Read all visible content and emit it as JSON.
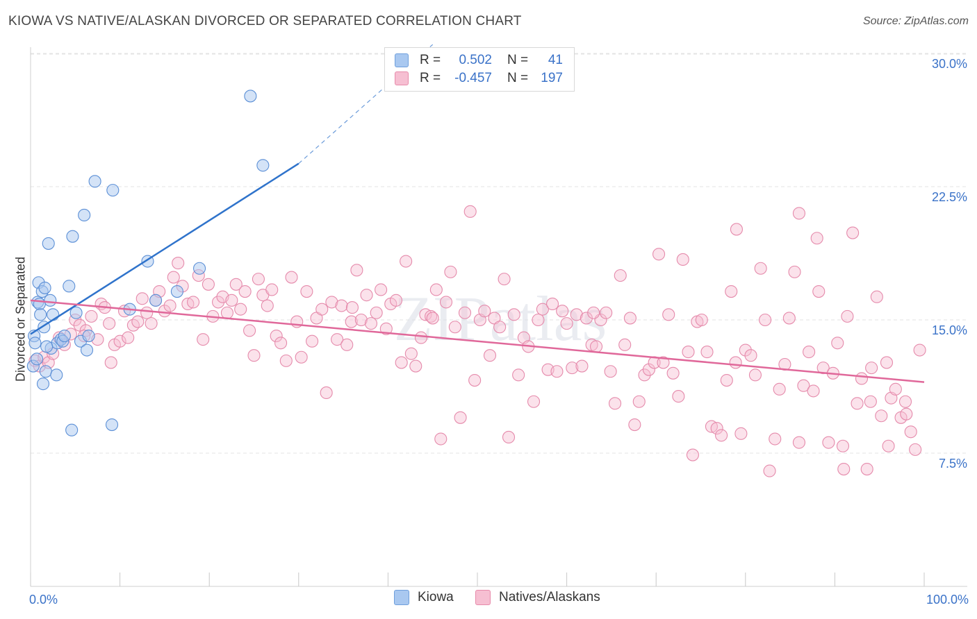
{
  "header": {
    "title": "KIOWA VS NATIVE/ALASKAN DIVORCED OR SEPARATED CORRELATION CHART",
    "source": "Source: ZipAtlas.com"
  },
  "watermark": "ZIPatlas",
  "legend": {
    "rows": [
      {
        "r_label": "R =",
        "r_value": "0.502",
        "n_label": "N =",
        "n_value": "41",
        "color": "#a9c8f0",
        "border": "#6f9fdc"
      },
      {
        "r_label": "R =",
        "r_value": "-0.457",
        "n_label": "N =",
        "n_value": "197",
        "color": "#f6bfd2",
        "border": "#e78aaa"
      }
    ]
  },
  "colors": {
    "kiowa_fill": "#a9c8f0",
    "kiowa_stroke": "#5b8fd6",
    "kiowa_line": "#2f73cb",
    "native_fill": "#f6bfd2",
    "native_stroke": "#e58aab",
    "native_line": "#e0689a",
    "tick_label": "#3a72c8",
    "grid": "#e3e3e3"
  },
  "chart_data": {
    "type": "scatter",
    "title": "KIOWA VS NATIVE/ALASKAN DIVORCED OR SEPARATED CORRELATION CHART",
    "xlabel": "",
    "ylabel": "Divorced or Separated",
    "xlim": [
      0,
      100
    ],
    "ylim": [
      0,
      31.5
    ],
    "x_tick_labels": [
      "0.0%",
      "100.0%"
    ],
    "y_ticks": [
      7.5,
      15.0,
      22.5,
      30.0
    ],
    "y_tick_labels": [
      "7.5%",
      "15.0%",
      "22.5%",
      "30.0%"
    ],
    "grid": true,
    "legend_placement": "bottom-center",
    "series": [
      {
        "name": "Kiowa",
        "r": 0.502,
        "n": 41,
        "trend": {
          "x": [
            0,
            30
          ],
          "y": [
            14.2,
            23.8
          ],
          "dashed_extension_to": [
            45,
            30.5
          ]
        },
        "points": [
          [
            0.3,
            12.4
          ],
          [
            0.4,
            14.1
          ],
          [
            0.5,
            13.7
          ],
          [
            0.8,
            16.0
          ],
          [
            0.9,
            17.1
          ],
          [
            1.0,
            15.9
          ],
          [
            1.1,
            15.3
          ],
          [
            1.3,
            16.6
          ],
          [
            1.4,
            11.4
          ],
          [
            1.5,
            14.6
          ],
          [
            1.6,
            16.8
          ],
          [
            1.7,
            12.1
          ],
          [
            2.0,
            19.3
          ],
          [
            2.2,
            16.1
          ],
          [
            2.3,
            13.4
          ],
          [
            2.5,
            15.3
          ],
          [
            2.9,
            11.9
          ],
          [
            3.0,
            13.7
          ],
          [
            3.4,
            13.9
          ],
          [
            3.6,
            13.8
          ],
          [
            3.8,
            14.1
          ],
          [
            4.3,
            16.9
          ],
          [
            4.6,
            8.8
          ],
          [
            4.7,
            19.7
          ],
          [
            5.1,
            15.4
          ],
          [
            5.6,
            13.8
          ],
          [
            6.0,
            20.9
          ],
          [
            6.3,
            13.3
          ],
          [
            6.5,
            14.1
          ],
          [
            7.2,
            22.8
          ],
          [
            9.1,
            9.1
          ],
          [
            9.2,
            22.3
          ],
          [
            11.1,
            15.6
          ],
          [
            13.1,
            18.3
          ],
          [
            14.0,
            16.1
          ],
          [
            16.4,
            16.6
          ],
          [
            18.9,
            17.9
          ],
          [
            24.6,
            27.6
          ],
          [
            26.0,
            23.7
          ],
          [
            1.8,
            13.5
          ],
          [
            0.7,
            12.8
          ]
        ]
      },
      {
        "name": "Natives/Alaskans",
        "r": -0.457,
        "n": 197,
        "trend": {
          "x": [
            0,
            100
          ],
          "y": [
            16.1,
            11.5
          ]
        },
        "points": [
          [
            0.5,
            12.7
          ],
          [
            1.0,
            12.4
          ],
          [
            1.5,
            12.9
          ],
          [
            2.0,
            12.6
          ],
          [
            2.5,
            13.1
          ],
          [
            3.2,
            14.0
          ],
          [
            3.8,
            13.6
          ],
          [
            4.5,
            14.2
          ],
          [
            5.0,
            15.0
          ],
          [
            5.5,
            14.7
          ],
          [
            6.2,
            14.4
          ],
          [
            6.8,
            15.2
          ],
          [
            7.5,
            13.9
          ],
          [
            7.9,
            15.9
          ],
          [
            8.3,
            15.7
          ],
          [
            8.8,
            14.8
          ],
          [
            9.4,
            13.6
          ],
          [
            10.0,
            13.8
          ],
          [
            10.5,
            15.5
          ],
          [
            10.9,
            14.0
          ],
          [
            11.5,
            14.7
          ],
          [
            12.0,
            14.9
          ],
          [
            12.5,
            16.2
          ],
          [
            13.0,
            15.4
          ],
          [
            13.5,
            14.8
          ],
          [
            14.0,
            16.1
          ],
          [
            14.4,
            16.6
          ],
          [
            15.0,
            15.5
          ],
          [
            15.6,
            15.8
          ],
          [
            16.0,
            17.4
          ],
          [
            16.5,
            18.2
          ],
          [
            17.0,
            16.9
          ],
          [
            17.6,
            15.9
          ],
          [
            18.2,
            16.0
          ],
          [
            18.8,
            17.5
          ],
          [
            19.3,
            13.9
          ],
          [
            19.9,
            17.0
          ],
          [
            20.4,
            15.2
          ],
          [
            21.0,
            16.0
          ],
          [
            21.5,
            16.3
          ],
          [
            22.0,
            15.4
          ],
          [
            22.5,
            16.1
          ],
          [
            23.0,
            17.0
          ],
          [
            23.5,
            15.6
          ],
          [
            24.0,
            16.6
          ],
          [
            24.5,
            14.4
          ],
          [
            25.0,
            13.0
          ],
          [
            25.5,
            17.3
          ],
          [
            26.0,
            16.4
          ],
          [
            26.5,
            15.8
          ],
          [
            27.0,
            16.7
          ],
          [
            27.5,
            14.1
          ],
          [
            28.0,
            13.7
          ],
          [
            28.6,
            12.7
          ],
          [
            29.2,
            17.4
          ],
          [
            29.8,
            14.9
          ],
          [
            30.3,
            12.9
          ],
          [
            30.9,
            16.6
          ],
          [
            31.5,
            13.8
          ],
          [
            32.0,
            15.1
          ],
          [
            32.6,
            15.6
          ],
          [
            33.1,
            10.9
          ],
          [
            33.7,
            16.0
          ],
          [
            34.3,
            13.9
          ],
          [
            34.8,
            15.8
          ],
          [
            35.4,
            13.6
          ],
          [
            35.9,
            14.9
          ],
          [
            36.5,
            17.8
          ],
          [
            37.0,
            15.0
          ],
          [
            37.6,
            16.4
          ],
          [
            38.1,
            14.8
          ],
          [
            38.7,
            15.4
          ],
          [
            39.2,
            16.7
          ],
          [
            39.8,
            14.5
          ],
          [
            40.3,
            15.9
          ],
          [
            40.9,
            16.1
          ],
          [
            41.5,
            12.6
          ],
          [
            42.0,
            18.3
          ],
          [
            42.6,
            13.1
          ],
          [
            43.1,
            12.4
          ],
          [
            43.7,
            14.0
          ],
          [
            44.2,
            15.3
          ],
          [
            44.8,
            15.2
          ],
          [
            45.4,
            16.7
          ],
          [
            45.9,
            8.3
          ],
          [
            46.5,
            16.0
          ],
          [
            47.0,
            17.7
          ],
          [
            47.5,
            14.6
          ],
          [
            48.1,
            9.5
          ],
          [
            48.6,
            15.4
          ],
          [
            49.2,
            21.1
          ],
          [
            49.7,
            11.6
          ],
          [
            50.3,
            15.0
          ],
          [
            50.8,
            15.5
          ],
          [
            51.4,
            13.0
          ],
          [
            51.9,
            15.1
          ],
          [
            52.5,
            14.6
          ],
          [
            53.0,
            17.3
          ],
          [
            53.5,
            8.4
          ],
          [
            54.1,
            15.3
          ],
          [
            54.6,
            11.9
          ],
          [
            55.2,
            14.0
          ],
          [
            55.7,
            13.5
          ],
          [
            56.3,
            10.4
          ],
          [
            56.8,
            15.0
          ],
          [
            57.3,
            15.6
          ],
          [
            57.9,
            12.2
          ],
          [
            58.4,
            15.9
          ],
          [
            58.9,
            12.1
          ],
          [
            59.5,
            15.5
          ],
          [
            60.0,
            14.8
          ],
          [
            60.6,
            12.3
          ],
          [
            61.1,
            15.3
          ],
          [
            61.7,
            12.4
          ],
          [
            62.2,
            15.1
          ],
          [
            62.8,
            13.6
          ],
          [
            63.3,
            13.5
          ],
          [
            63.8,
            15.0
          ],
          [
            64.4,
            15.4
          ],
          [
            64.9,
            12.1
          ],
          [
            65.4,
            10.3
          ],
          [
            66.0,
            17.5
          ],
          [
            66.5,
            13.6
          ],
          [
            67.1,
            15.1
          ],
          [
            67.6,
            9.1
          ],
          [
            68.1,
            10.4
          ],
          [
            68.7,
            11.9
          ],
          [
            69.2,
            12.2
          ],
          [
            69.8,
            12.6
          ],
          [
            70.3,
            18.7
          ],
          [
            70.8,
            12.6
          ],
          [
            71.4,
            15.3
          ],
          [
            71.9,
            12.0
          ],
          [
            72.5,
            10.7
          ],
          [
            73.0,
            18.4
          ],
          [
            73.6,
            13.2
          ],
          [
            74.1,
            7.4
          ],
          [
            74.6,
            14.9
          ],
          [
            75.1,
            15.0
          ],
          [
            75.7,
            13.2
          ],
          [
            76.2,
            9.0
          ],
          [
            76.8,
            8.9
          ],
          [
            77.3,
            8.5
          ],
          [
            77.9,
            11.6
          ],
          [
            78.4,
            16.6
          ],
          [
            78.9,
            12.6
          ],
          [
            79.5,
            8.6
          ],
          [
            80.0,
            13.3
          ],
          [
            80.6,
            13.0
          ],
          [
            81.1,
            11.9
          ],
          [
            81.7,
            17.9
          ],
          [
            82.2,
            15.0
          ],
          [
            82.7,
            6.5
          ],
          [
            83.3,
            8.3
          ],
          [
            83.8,
            11.1
          ],
          [
            84.4,
            12.5
          ],
          [
            84.9,
            15.1
          ],
          [
            85.5,
            17.7
          ],
          [
            86.0,
            8.1
          ],
          [
            86.5,
            11.3
          ],
          [
            87.1,
            13.2
          ],
          [
            87.6,
            11.0
          ],
          [
            88.2,
            16.6
          ],
          [
            88.7,
            12.3
          ],
          [
            89.3,
            8.1
          ],
          [
            89.8,
            12.0
          ],
          [
            90.3,
            13.7
          ],
          [
            90.9,
            7.9
          ],
          [
            91.4,
            15.2
          ],
          [
            92.0,
            19.9
          ],
          [
            92.5,
            10.3
          ],
          [
            93.0,
            11.7
          ],
          [
            93.6,
            6.6
          ],
          [
            94.1,
            12.3
          ],
          [
            94.7,
            16.3
          ],
          [
            95.2,
            9.6
          ],
          [
            95.8,
            12.6
          ],
          [
            96.3,
            10.6
          ],
          [
            96.8,
            11.1
          ],
          [
            97.4,
            9.5
          ],
          [
            97.9,
            10.4
          ],
          [
            98.5,
            8.7
          ],
          [
            99.0,
            7.7
          ],
          [
            99.5,
            13.3
          ],
          [
            98.0,
            9.7
          ],
          [
            96.0,
            7.9
          ],
          [
            94.0,
            10.4
          ],
          [
            91.0,
            6.6
          ],
          [
            88.0,
            19.6
          ],
          [
            86.0,
            21.0
          ],
          [
            79.0,
            20.1
          ],
          [
            63.0,
            15.4
          ],
          [
            45.0,
            15.1
          ],
          [
            36.0,
            15.7
          ],
          [
            6.0,
            14.1
          ],
          [
            9.0,
            12.6
          ]
        ]
      }
    ]
  }
}
